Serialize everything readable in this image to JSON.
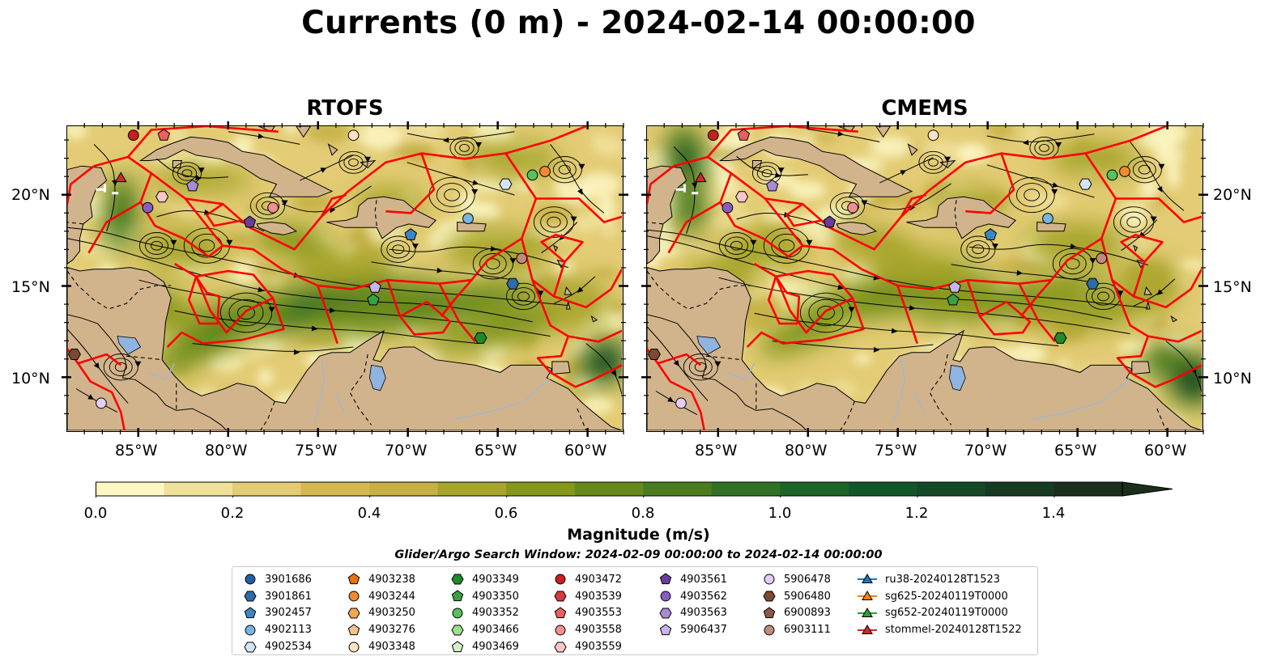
{
  "title": "Currents (0 m) - 2024-02-14 00:00:00",
  "panels": [
    {
      "title": "RTOFS"
    },
    {
      "title": "CMEMS"
    }
  ],
  "map": {
    "lon_range": [
      -89.0,
      -58.0
    ],
    "lat_range": [
      7.0,
      23.8
    ],
    "x_ticks": [
      "85°W",
      "80°W",
      "75°W",
      "70°W",
      "65°W",
      "60°W"
    ],
    "y_ticks": [
      "20°N",
      "15°N",
      "10°N"
    ],
    "land_color": "#d2b48c",
    "eez_color": "#ff0000",
    "lake_color": "#8fb4e0"
  },
  "colorbar": {
    "label": "Magnitude (m/s)",
    "tick_labels": [
      "0.0",
      "0.2",
      "0.4",
      "0.6",
      "0.8",
      "1.0",
      "1.2",
      "1.4"
    ],
    "range": [
      0.0,
      1.5
    ],
    "extend": "max",
    "colors": [
      "#fdf7c4",
      "#f0e19a",
      "#e3cc75",
      "#d6b853",
      "#c7b046",
      "#a7a52d",
      "#85981b",
      "#66891b",
      "#4b7d1f",
      "#317125",
      "#1c6427",
      "#135729",
      "#154826",
      "#163a22",
      "#1a2e1c"
    ]
  },
  "legend": {
    "title": "Glider/Argo Search Window: 2024-02-09 00:00:00 to 2024-02-14 00:00:00",
    "columns": [
      [
        {
          "label": "3901686",
          "marker": "circle",
          "color": "#1f5fa6"
        },
        {
          "label": "3901861",
          "marker": "hexagon",
          "color": "#2c6ca8"
        },
        {
          "label": "3902457",
          "marker": "pentagon",
          "color": "#3d86c4"
        },
        {
          "label": "4902113",
          "marker": "circle",
          "color": "#7ab4e2"
        },
        {
          "label": "4902534",
          "marker": "hexagon",
          "color": "#d3e6f7"
        }
      ],
      [
        {
          "label": "4903238",
          "marker": "pentagon",
          "color": "#e8700e"
        },
        {
          "label": "4903244",
          "marker": "circle",
          "color": "#f08c2e"
        },
        {
          "label": "4903250",
          "marker": "hexagon",
          "color": "#f6a550"
        },
        {
          "label": "4903276",
          "marker": "pentagon",
          "color": "#f8c08a"
        },
        {
          "label": "4903348",
          "marker": "circle",
          "color": "#fde3c4"
        }
      ],
      [
        {
          "label": "4903349",
          "marker": "hexagon",
          "color": "#1e8a2a"
        },
        {
          "label": "4903350",
          "marker": "pentagon",
          "color": "#39a240"
        },
        {
          "label": "4903352",
          "marker": "circle",
          "color": "#58c05e"
        },
        {
          "label": "4903466",
          "marker": "hexagon",
          "color": "#9be08f"
        },
        {
          "label": "4903469",
          "marker": "pentagon",
          "color": "#d2f3c6"
        }
      ],
      [
        {
          "label": "4903472",
          "marker": "circle",
          "color": "#c8201e"
        },
        {
          "label": "4903539",
          "marker": "hexagon",
          "color": "#d63a3a"
        },
        {
          "label": "4903553",
          "marker": "pentagon",
          "color": "#e86060"
        },
        {
          "label": "4903558",
          "marker": "circle",
          "color": "#f29090"
        },
        {
          "label": "4903559",
          "marker": "hexagon",
          "color": "#fbc6c6"
        }
      ],
      [
        {
          "label": "4903561",
          "marker": "pentagon",
          "color": "#6a3d9a"
        },
        {
          "label": "4903562",
          "marker": "circle",
          "color": "#8a5cc2"
        },
        {
          "label": "4903563",
          "marker": "hexagon",
          "color": "#a88ad6"
        },
        {
          "label": "5906437",
          "marker": "pentagon",
          "color": "#c9b4ec"
        },
        {
          "label": "",
          "marker": "none",
          "color": "#ffffff"
        }
      ],
      [
        {
          "label": "5906478",
          "marker": "circle",
          "color": "#e6cdf5"
        },
        {
          "label": "5906480",
          "marker": "hexagon",
          "color": "#7b4a33"
        },
        {
          "label": "6900893",
          "marker": "pentagon",
          "color": "#8c5a44"
        },
        {
          "label": "6903111",
          "marker": "circle",
          "color": "#c28a7a"
        },
        {
          "label": "",
          "marker": "none",
          "color": "#ffffff"
        }
      ],
      [
        {
          "label": "ru38-20240128T1523",
          "marker": "triangle-line",
          "color": "#1f77b4"
        },
        {
          "label": "sg625-20240119T0000",
          "marker": "triangle-line",
          "color": "#ff7f0e"
        },
        {
          "label": "sg652-20240119T0000",
          "marker": "triangle-line",
          "color": "#2ca02c"
        },
        {
          "label": "stommel-20240128T1522",
          "marker": "triangle-line",
          "color": "#d62728"
        },
        {
          "label": "",
          "marker": "none",
          "color": "#ffffff"
        }
      ]
    ]
  },
  "floats": [
    {
      "lon": -85.3,
      "lat": 23.3,
      "marker": "circle",
      "color": "#c8201e"
    },
    {
      "lon": -83.6,
      "lat": 23.3,
      "marker": "pentagon",
      "color": "#e86060"
    },
    {
      "lon": -86.0,
      "lat": 20.9,
      "marker": "triangle",
      "color": "#d62728"
    },
    {
      "lon": -84.5,
      "lat": 19.3,
      "marker": "circle",
      "color": "#8a5cc2"
    },
    {
      "lon": -83.7,
      "lat": 19.9,
      "marker": "hexagon",
      "color": "#fbc6c6"
    },
    {
      "lon": -82.0,
      "lat": 20.5,
      "marker": "pentagon",
      "color": "#a88ad6"
    },
    {
      "lon": -78.8,
      "lat": 18.5,
      "marker": "pentagon",
      "color": "#6a3d9a"
    },
    {
      "lon": -77.5,
      "lat": 19.3,
      "marker": "circle",
      "color": "#f29090"
    },
    {
      "lon": -73.0,
      "lat": 23.3,
      "marker": "circle",
      "color": "#fde3c4"
    },
    {
      "lon": -64.5,
      "lat": 20.6,
      "marker": "hexagon",
      "color": "#d3e6f7"
    },
    {
      "lon": -63.0,
      "lat": 21.1,
      "marker": "circle",
      "color": "#58c05e"
    },
    {
      "lon": -62.3,
      "lat": 21.3,
      "marker": "circle",
      "color": "#f08c2e"
    },
    {
      "lon": -66.6,
      "lat": 18.7,
      "marker": "circle",
      "color": "#7ab4e2"
    },
    {
      "lon": -69.8,
      "lat": 17.8,
      "marker": "pentagon",
      "color": "#3d86c4"
    },
    {
      "lon": -63.6,
      "lat": 16.5,
      "marker": "circle",
      "color": "#c28a7a"
    },
    {
      "lon": -64.1,
      "lat": 15.1,
      "marker": "hexagon",
      "color": "#2c6ca8"
    },
    {
      "lon": -71.8,
      "lat": 14.9,
      "marker": "pentagon",
      "color": "#c9b4ec"
    },
    {
      "lon": -71.9,
      "lat": 14.2,
      "marker": "pentagon",
      "color": "#39a240"
    },
    {
      "lon": -65.9,
      "lat": 12.1,
      "marker": "hexagon",
      "color": "#1e8a2a"
    },
    {
      "lon": -88.6,
      "lat": 11.2,
      "marker": "hexagon",
      "color": "#7b4a33"
    },
    {
      "lon": -87.1,
      "lat": 8.5,
      "marker": "circle",
      "color": "#e6cdf5"
    }
  ]
}
